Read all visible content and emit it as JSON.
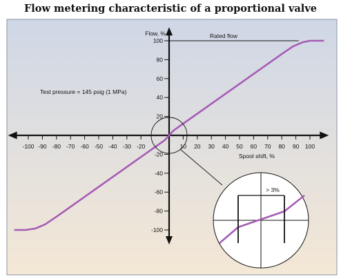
{
  "title": "Flow metering characteristic of a proportional valve",
  "colors": {
    "curve": "#a55bb5",
    "axis": "#111111",
    "bg_top": "#cfd7e6",
    "bg_bottom": "#f4e8d6",
    "border": "#8a93a3"
  },
  "chart_data": {
    "type": "line",
    "title": "Flow metering characteristic of a proportional valve",
    "xlabel": "Spool shift, %",
    "ylabel": "Flow, %",
    "xlim": [
      -112,
      118
    ],
    "ylim": [
      -115,
      110
    ],
    "x_ticks": [
      -100,
      -90,
      -80,
      -70,
      -60,
      -50,
      -40,
      -30,
      -20,
      10,
      20,
      30,
      40,
      50,
      60,
      70,
      80,
      90,
      100
    ],
    "y_ticks": [
      100,
      80,
      60,
      40,
      20,
      -20,
      -40,
      -60,
      -80,
      -100
    ],
    "x_tick_labels": [
      "-100",
      "-90",
      "-80",
      "-70",
      "-60",
      "-50",
      "-40",
      "-30",
      "-20",
      "10",
      "20",
      "30",
      "40",
      "50",
      "60",
      "70",
      "80",
      "90",
      "100"
    ],
    "y_tick_labels": [
      "100",
      "80",
      "60",
      "40",
      "20",
      "-20",
      "-40",
      "-60",
      "-80",
      "-100"
    ],
    "series": [
      {
        "points": [
          [
            -110,
            -100
          ],
          [
            -102,
            -100
          ],
          [
            -95,
            -98.5
          ],
          [
            -88,
            -94
          ],
          [
            -80,
            -86
          ],
          [
            -3,
            -5
          ],
          [
            3,
            5
          ],
          [
            80,
            86
          ],
          [
            88,
            94
          ],
          [
            95,
            98.5
          ],
          [
            100,
            100
          ],
          [
            110,
            100
          ]
        ]
      }
    ],
    "annotations": {
      "rated_flow": "Rated flow",
      "rated_flow_level": 100,
      "test_pressure": "Test pressure = 145 psig (1 MPa)",
      "deadband": "> 3%"
    },
    "grid": false
  }
}
